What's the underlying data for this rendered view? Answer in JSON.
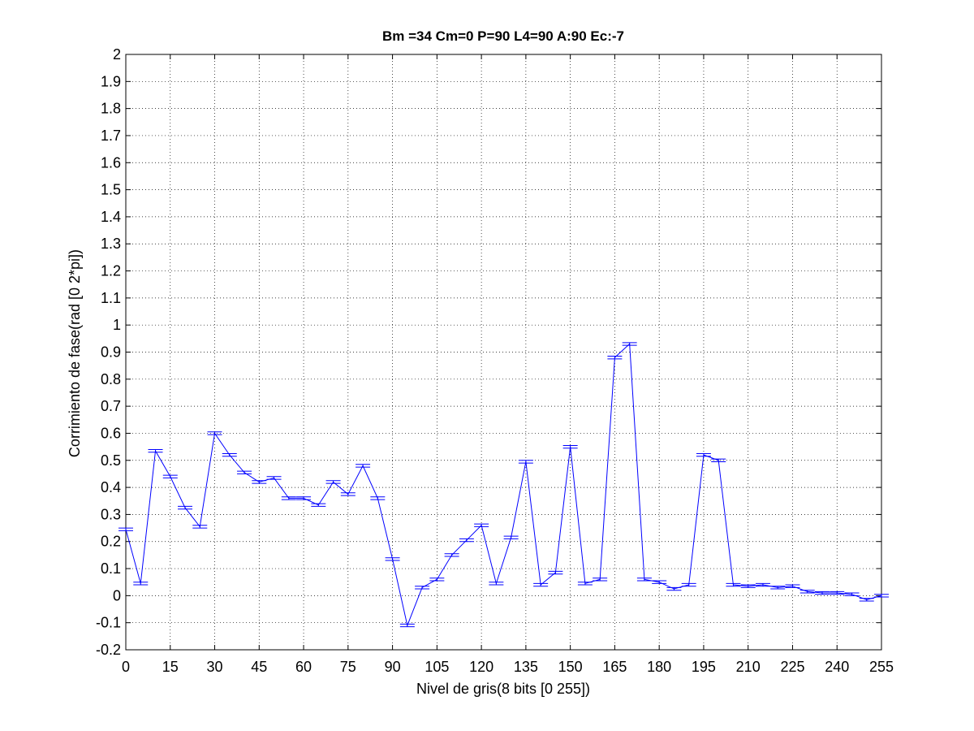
{
  "chart_data": {
    "type": "line",
    "title": "Bm =34  Cm=0  P=90  L4=90  A:90  Ec:-7",
    "xlabel": "Nivel de gris(8 bits [0 255])",
    "ylabel": "Corrimiento de fase(rad [0 2*pi])",
    "xlim": [
      0,
      255
    ],
    "ylim": [
      -0.2,
      2
    ],
    "xticks": [
      "0",
      "15",
      "30",
      "45",
      "60",
      "75",
      "90",
      "105",
      "120",
      "135",
      "150",
      "165",
      "180",
      "195",
      "210",
      "225",
      "240",
      "255"
    ],
    "yticks": [
      "-0.2",
      "-0.1",
      "0",
      "0.1",
      "0.2",
      "0.3",
      "0.4",
      "0.5",
      "0.6",
      "0.7",
      "0.8",
      "0.9",
      "1",
      "1.1",
      "1.2",
      "1.3",
      "1.4",
      "1.5",
      "1.6",
      "1.7",
      "1.8",
      "1.9",
      "2"
    ],
    "grid": true,
    "series": [
      {
        "color": "#0000ff",
        "x": [
          0,
          5,
          10,
          15,
          20,
          25,
          30,
          35,
          40,
          45,
          50,
          55,
          60,
          65,
          70,
          75,
          80,
          85,
          90,
          95,
          100,
          105,
          110,
          115,
          120,
          125,
          130,
          135,
          140,
          145,
          150,
          155,
          160,
          165,
          170,
          175,
          180,
          185,
          190,
          195,
          200,
          205,
          210,
          215,
          220,
          225,
          230,
          235,
          240,
          245,
          250,
          255
        ],
        "y": [
          0.245,
          0.045,
          0.535,
          0.44,
          0.325,
          0.255,
          0.6,
          0.52,
          0.455,
          0.42,
          0.435,
          0.36,
          0.36,
          0.335,
          0.42,
          0.375,
          0.48,
          0.36,
          0.135,
          -0.11,
          0.03,
          0.06,
          0.15,
          0.205,
          0.26,
          0.045,
          0.215,
          0.495,
          0.04,
          0.085,
          0.55,
          0.045,
          0.06,
          0.88,
          0.93,
          0.06,
          0.05,
          0.025,
          0.04,
          0.52,
          0.5,
          0.04,
          0.035,
          0.04,
          0.03,
          0.035,
          0.015,
          0.01,
          0.01,
          0.005,
          -0.015,
          0.0
        ],
        "error": [
          0.005,
          0.005,
          0.005,
          0.005,
          0.005,
          0.005,
          0.005,
          0.005,
          0.005,
          0.005,
          0.005,
          0.005,
          0.005,
          0.005,
          0.005,
          0.005,
          0.005,
          0.005,
          0.005,
          0.005,
          0.005,
          0.005,
          0.005,
          0.005,
          0.005,
          0.005,
          0.005,
          0.005,
          0.005,
          0.005,
          0.005,
          0.005,
          0.005,
          0.005,
          0.005,
          0.005,
          0.005,
          0.005,
          0.005,
          0.005,
          0.005,
          0.005,
          0.005,
          0.005,
          0.005,
          0.005,
          0.005,
          0.005,
          0.005,
          0.005,
          0.005,
          0.005
        ]
      }
    ]
  }
}
